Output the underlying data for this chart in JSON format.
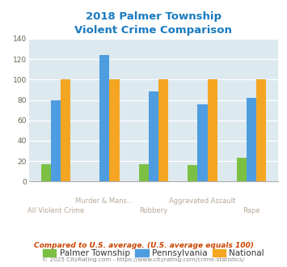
{
  "title": "2018 Palmer Township\nViolent Crime Comparison",
  "palmer": [
    17,
    0,
    17,
    16,
    23
  ],
  "pennsylvania": [
    80,
    124,
    88,
    76,
    82
  ],
  "national": [
    100,
    100,
    100,
    100,
    100
  ],
  "color_palmer": "#7bc043",
  "color_penn": "#4d9de0",
  "color_national": "#f4a623",
  "ylim": [
    0,
    140
  ],
  "yticks": [
    0,
    20,
    40,
    60,
    80,
    100,
    120,
    140
  ],
  "title_color": "#1a7abf",
  "legend_labels": [
    "Palmer Township",
    "Pennsylvania",
    "National"
  ],
  "footnote1": "Compared to U.S. average. (U.S. average equals 100)",
  "footnote2": "© 2025 CityRating.com - https://www.cityrating.com/crime-statistics/",
  "bg_color": "#dce9ef",
  "bar_width": 0.2,
  "upper_xlabels": [
    "",
    "Murder & Mans...",
    "",
    "Aggravated Assault",
    ""
  ],
  "lower_xlabels": [
    "All Violent Crime",
    "",
    "Robbery",
    "",
    "Rape"
  ],
  "upper_label_color": "#b0a090",
  "lower_label_color": "#b0a090"
}
